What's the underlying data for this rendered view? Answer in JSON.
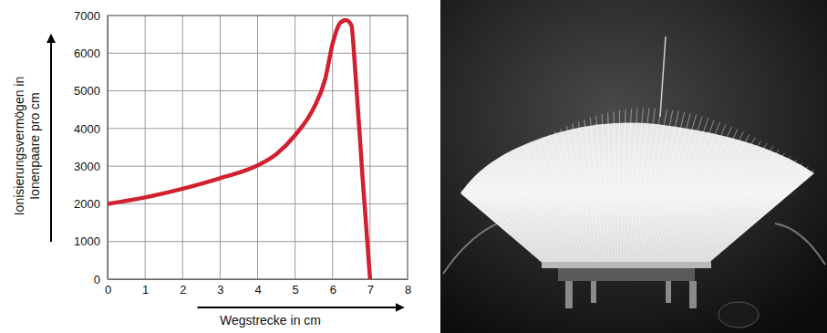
{
  "chart_data": {
    "type": "line",
    "x_label": "Wegstrecke in cm",
    "y_label": "Ionisierungsvermögen in Ionenpaare pro cm",
    "x": [
      0,
      1,
      2,
      3,
      4,
      4.5,
      5,
      5.5,
      5.8,
      6,
      6.2,
      6.35,
      6.5,
      6.6,
      6.8,
      7
    ],
    "values": [
      2000,
      2170,
      2400,
      2680,
      3020,
      3320,
      3820,
      4550,
      5300,
      6250,
      6800,
      6880,
      6750,
      5600,
      2700,
      0
    ],
    "color": "#d1202f",
    "xlim": [
      0,
      8
    ],
    "xticks": [
      0,
      1,
      2,
      3,
      4,
      5,
      6,
      7,
      8
    ],
    "ylim": [
      0,
      7000
    ],
    "yticks": [
      0,
      1000,
      2000,
      3000,
      4000,
      5000,
      6000,
      7000
    ],
    "grid": true
  }
}
